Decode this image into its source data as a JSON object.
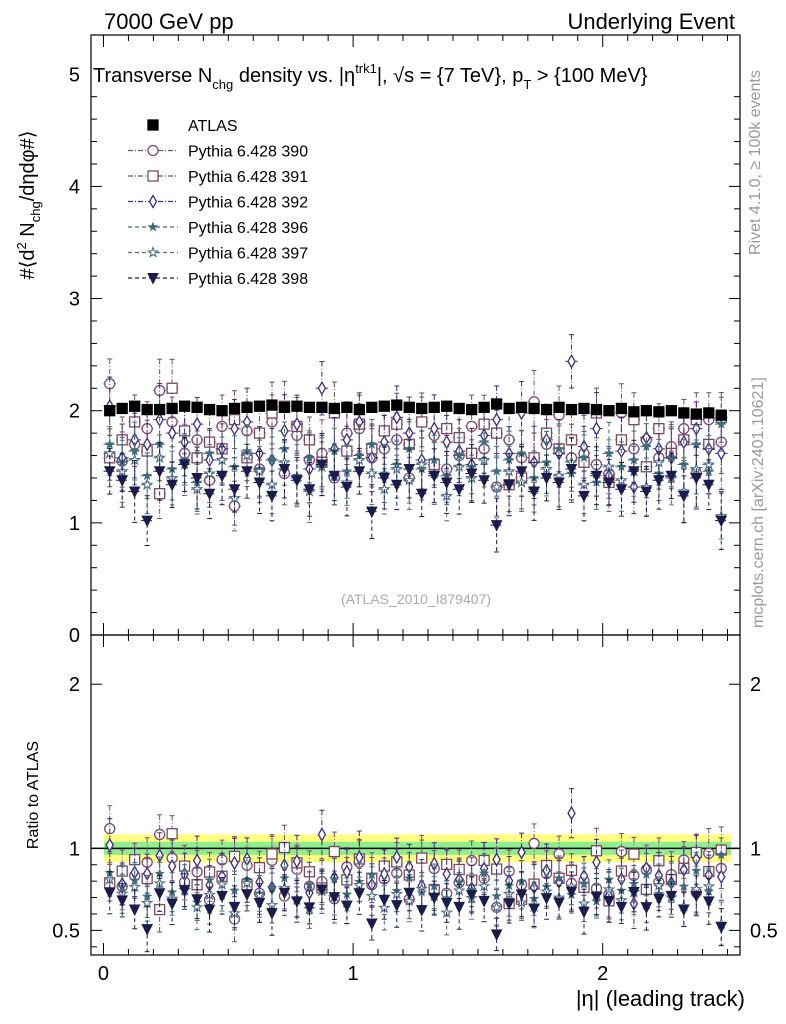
{
  "header": {
    "left": "7000 GeV pp",
    "right": "Underlying Event"
  },
  "side": {
    "rivet": "Rivet 4.1.0, ≥ 100k events",
    "mcplots": "mcplots.cern.ch [arXiv:2401.10621]"
  },
  "analysis_id": "(ATLAS_2010_I879407)",
  "chart_data": [
    {
      "type": "scatter",
      "panel": "main",
      "title": "Transverse N_chg density vs. |η^trk1|, √s = {7 TeV}, p_T > {100 MeV}",
      "title_parts": {
        "a": "Transverse N",
        "a_sub": "chg",
        "b": " density vs. |η",
        "b_sup": "trk1",
        "c": "|, √s = {7 TeV}, p",
        "c_sub": "T",
        "d": " > {100 MeV}"
      },
      "ylabel": "#⟨d² N_chg/dηdφ#⟩",
      "ylabel_parts": {
        "a": "#⟨d",
        "a_sup": "2",
        "b": " N",
        "b_sub": "chg",
        "c": "/dηdφ#⟩"
      },
      "xlim": [
        -0.05,
        2.55
      ],
      "ylim": [
        0,
        5.35
      ],
      "yticks": [
        0,
        1,
        2,
        3,
        4,
        5
      ],
      "x": [
        0.025,
        0.075,
        0.125,
        0.175,
        0.225,
        0.275,
        0.325,
        0.375,
        0.425,
        0.475,
        0.525,
        0.575,
        0.625,
        0.675,
        0.725,
        0.775,
        0.825,
        0.875,
        0.925,
        0.975,
        1.025,
        1.075,
        1.125,
        1.175,
        1.225,
        1.275,
        1.325,
        1.375,
        1.425,
        1.475,
        1.525,
        1.575,
        1.625,
        1.675,
        1.725,
        1.775,
        1.825,
        1.875,
        1.925,
        1.975,
        2.025,
        2.075,
        2.125,
        2.175,
        2.225,
        2.275,
        2.325,
        2.375,
        2.425,
        2.475
      ],
      "series": [
        {
          "name": "ATLAS",
          "marker": "square-filled",
          "color": "#000000",
          "values": [
            2.0,
            2.02,
            2.04,
            2.01,
            2.01,
            2.02,
            2.04,
            2.03,
            2.01,
            2.0,
            2.02,
            2.03,
            2.04,
            2.05,
            2.03,
            2.04,
            2.03,
            2.03,
            2.02,
            2.03,
            2.01,
            2.03,
            2.04,
            2.05,
            2.03,
            2.02,
            2.03,
            2.04,
            2.02,
            2.01,
            2.03,
            2.06,
            2.02,
            2.03,
            2.02,
            2.01,
            2.03,
            2.01,
            2.02,
            2.01,
            2.0,
            2.02,
            1.99,
            2.0,
            1.99,
            2.0,
            1.98,
            1.97,
            1.98,
            1.96
          ],
          "err": 0.025
        },
        {
          "name": "Pythia 6.428 390",
          "marker": "circle-open",
          "color": "#7a4a78",
          "dash": "5,2,1,2",
          "values": [
            2.24,
            1.55,
            1.7,
            1.84,
            2.18,
            1.9,
            1.62,
            1.74,
            1.38,
            1.86,
            1.15,
            1.82,
            1.48,
            1.9,
            1.44,
            1.78,
            1.56,
            1.62,
            1.4,
            1.8,
            1.84,
            1.58,
            1.66,
            1.74,
            1.4,
            1.9,
            1.78,
            1.48,
            1.6,
            1.86,
            1.66,
            1.32,
            1.74,
            1.58,
            2.08,
            1.7,
            1.96,
            1.58,
            1.62,
            1.52,
            1.44,
            1.98,
            1.66,
            1.74,
            1.58,
            1.68,
            1.84,
            1.44,
            1.92,
            1.72
          ],
          "err": 0.26
        },
        {
          "name": "Pythia 6.428 391",
          "marker": "square-open",
          "color": "#7a4a5a",
          "dash": "5,2,1,2",
          "values": [
            1.58,
            1.74,
            1.9,
            1.64,
            1.26,
            2.2,
            1.82,
            1.58,
            1.72,
            1.66,
            1.92,
            1.58,
            1.8,
            1.98,
            2.04,
            1.86,
            1.74,
            1.54,
            1.98,
            1.64,
            1.88,
            1.66,
            1.82,
            1.88,
            1.7,
            1.9,
            1.52,
            1.84,
            1.76,
            1.62,
            1.88,
            1.8,
            1.34,
            1.4,
            1.58,
            1.8,
            1.66,
            1.74,
            1.54,
            1.98,
            1.36,
            1.74,
            1.92,
            1.5,
            1.84,
            1.62,
            1.74,
            1.92,
            1.7,
            1.94
          ],
          "err": 0.24
        },
        {
          "name": "Pythia 6.428 392",
          "marker": "diamond-open",
          "color": "#3b2a80",
          "dash": "5,2,1,2",
          "values": [
            2.04,
            1.58,
            1.74,
            1.7,
            1.92,
            1.8,
            1.72,
            1.88,
            1.56,
            1.66,
            1.84,
            1.9,
            1.62,
            1.56,
            1.82,
            1.88,
            1.48,
            2.2,
            1.66,
            1.74,
            1.9,
            1.58,
            1.72,
            1.94,
            1.8,
            1.56,
            1.84,
            1.72,
            1.64,
            1.52,
            1.78,
            1.92,
            1.62,
            1.98,
            1.54,
            1.74,
            1.62,
            2.44,
            1.68,
            1.84,
            1.42,
            1.64,
            1.32,
            1.76,
            1.66,
            1.58,
            1.72,
            1.84,
            1.66,
            1.62
          ],
          "err": 0.28
        },
        {
          "name": "Pythia 6.428 396",
          "marker": "star-filled",
          "color": "#3d6a78",
          "dash": "4,3",
          "values": [
            1.7,
            1.54,
            1.64,
            1.42,
            1.7,
            1.48,
            1.56,
            1.36,
            1.62,
            1.44,
            1.5,
            1.64,
            1.48,
            1.56,
            1.66,
            1.42,
            1.58,
            1.5,
            1.64,
            1.46,
            1.6,
            1.7,
            1.44,
            1.52,
            1.66,
            1.48,
            1.56,
            1.42,
            1.6,
            1.5,
            1.72,
            1.46,
            1.56,
            1.62,
            1.4,
            1.54,
            1.66,
            1.44,
            1.58,
            1.36,
            1.62,
            1.5,
            1.56,
            1.68,
            1.44,
            1.58,
            1.52,
            1.7,
            1.46,
            1.88
          ],
          "err": 0.24
        },
        {
          "name": "Pythia 6.428 397",
          "marker": "star-open",
          "color": "#4e6f86",
          "dash": "4,3",
          "values": [
            1.62,
            1.46,
            1.56,
            1.34,
            1.58,
            1.4,
            1.52,
            1.3,
            1.44,
            1.56,
            1.22,
            1.6,
            1.46,
            1.34,
            1.54,
            1.4,
            1.28,
            1.5,
            1.42,
            1.36,
            1.56,
            1.44,
            1.3,
            1.48,
            1.38,
            1.52,
            1.44,
            1.24,
            1.5,
            1.4,
            1.56,
            1.32,
            1.46,
            1.36,
            1.3,
            1.48,
            1.42,
            1.54,
            1.34,
            1.44,
            1.5,
            1.38,
            1.46,
            1.32,
            1.54,
            1.4,
            1.28,
            1.48,
            1.52,
            1.06
          ],
          "err": 0.24
        },
        {
          "name": "Pythia 6.428 398",
          "marker": "triangle-down-filled",
          "color": "#1c1c4c",
          "dash": "4,3",
          "values": [
            1.46,
            1.38,
            1.28,
            1.02,
            1.46,
            1.34,
            1.52,
            1.4,
            1.26,
            1.42,
            1.3,
            1.46,
            1.36,
            1.24,
            1.48,
            1.38,
            1.3,
            1.52,
            1.42,
            1.32,
            1.46,
            1.1,
            1.4,
            1.34,
            1.48,
            1.26,
            1.42,
            1.36,
            1.3,
            1.44,
            1.38,
            0.98,
            1.34,
            1.46,
            1.28,
            1.4,
            1.36,
            1.48,
            1.24,
            1.42,
            1.36,
            1.3,
            1.46,
            1.28,
            1.38,
            1.42,
            1.24,
            1.4,
            1.34,
            1.02
          ],
          "err": 0.24
        }
      ]
    },
    {
      "type": "scatter",
      "panel": "ratio",
      "ylabel": "Ratio to ATLAS",
      "xlabel": "|η| (leading track)",
      "xlim": [
        -0.05,
        2.55
      ],
      "ylim": [
        0.35,
        2.3
      ],
      "yticks": [
        0.5,
        1,
        2
      ],
      "ytick_labels": [
        "0.5",
        "1",
        "2"
      ],
      "xticks": [
        0,
        1,
        2
      ],
      "xtick_labels": [
        "0",
        "1",
        "2"
      ],
      "bands": {
        "stat": {
          "lo": 0.96,
          "hi": 1.04,
          "color": "#90ee90"
        },
        "total": {
          "lo": 0.915,
          "hi": 1.085,
          "color": "#ffff80"
        }
      },
      "reference_line": 1
    }
  ]
}
